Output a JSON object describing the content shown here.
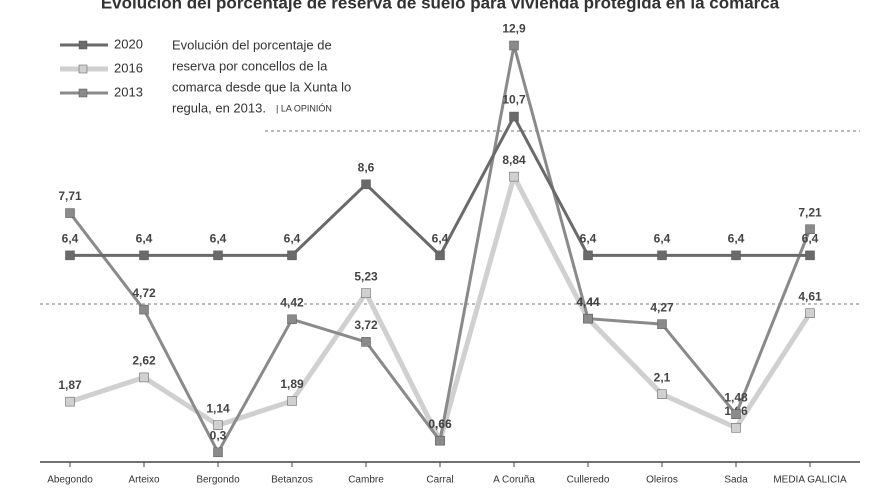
{
  "chart_data": {
    "type": "line",
    "title": "Evolución del porcentaje de reserva de suelo para vivienda protegida en la comarca",
    "annotation_lines": [
      "Evolución del porcentaje de",
      "reserva por concellos de la",
      "comarca desde que la Xunta lo",
      "regula, en 2013."
    ],
    "source": "| LA OPINIÓN",
    "categories": [
      "Abegondo",
      "Arteixo",
      "Bergondo",
      "Betanzos",
      "Cambre",
      "Carral",
      "A Coruña",
      "Culleredo",
      "Oleiros",
      "Sada",
      "MEDIA GALICIA"
    ],
    "ylim": [
      0,
      14
    ],
    "series": [
      {
        "name": "2020",
        "color": "#6a6a6a",
        "width": 3,
        "values": [
          6.4,
          6.4,
          6.4,
          6.4,
          8.6,
          6.4,
          10.7,
          6.4,
          6.4,
          6.4,
          6.4
        ],
        "value_labels": [
          "6,4",
          "6,4",
          "6,4",
          "6,4",
          "8,6",
          "6,4",
          "10,7",
          "6,4",
          "6,4",
          "6,4",
          "6,4"
        ]
      },
      {
        "name": "2016",
        "color": "#d0d0d0",
        "width": 5,
        "values": [
          1.87,
          2.62,
          1.14,
          1.89,
          5.23,
          0.66,
          8.84,
          4.44,
          2.1,
          1.06,
          4.61
        ],
        "value_labels": [
          "1,87",
          "2,62",
          "1,14",
          "1,89",
          "5,23",
          "0,66",
          "8,84",
          "4,44",
          "2,1",
          "1,06",
          "4,61"
        ]
      },
      {
        "name": "2013",
        "color": "#8a8a8a",
        "width": 3,
        "values": [
          7.71,
          4.72,
          0.3,
          4.42,
          3.72,
          0.66,
          12.9,
          4.44,
          4.27,
          1.48,
          7.21
        ],
        "value_labels": [
          "7,71",
          "4,72",
          "0,3",
          "4,42",
          "3,72",
          "0,66",
          "12,9",
          "4,44",
          "4,27",
          "1,48",
          "7,21"
        ]
      }
    ]
  }
}
